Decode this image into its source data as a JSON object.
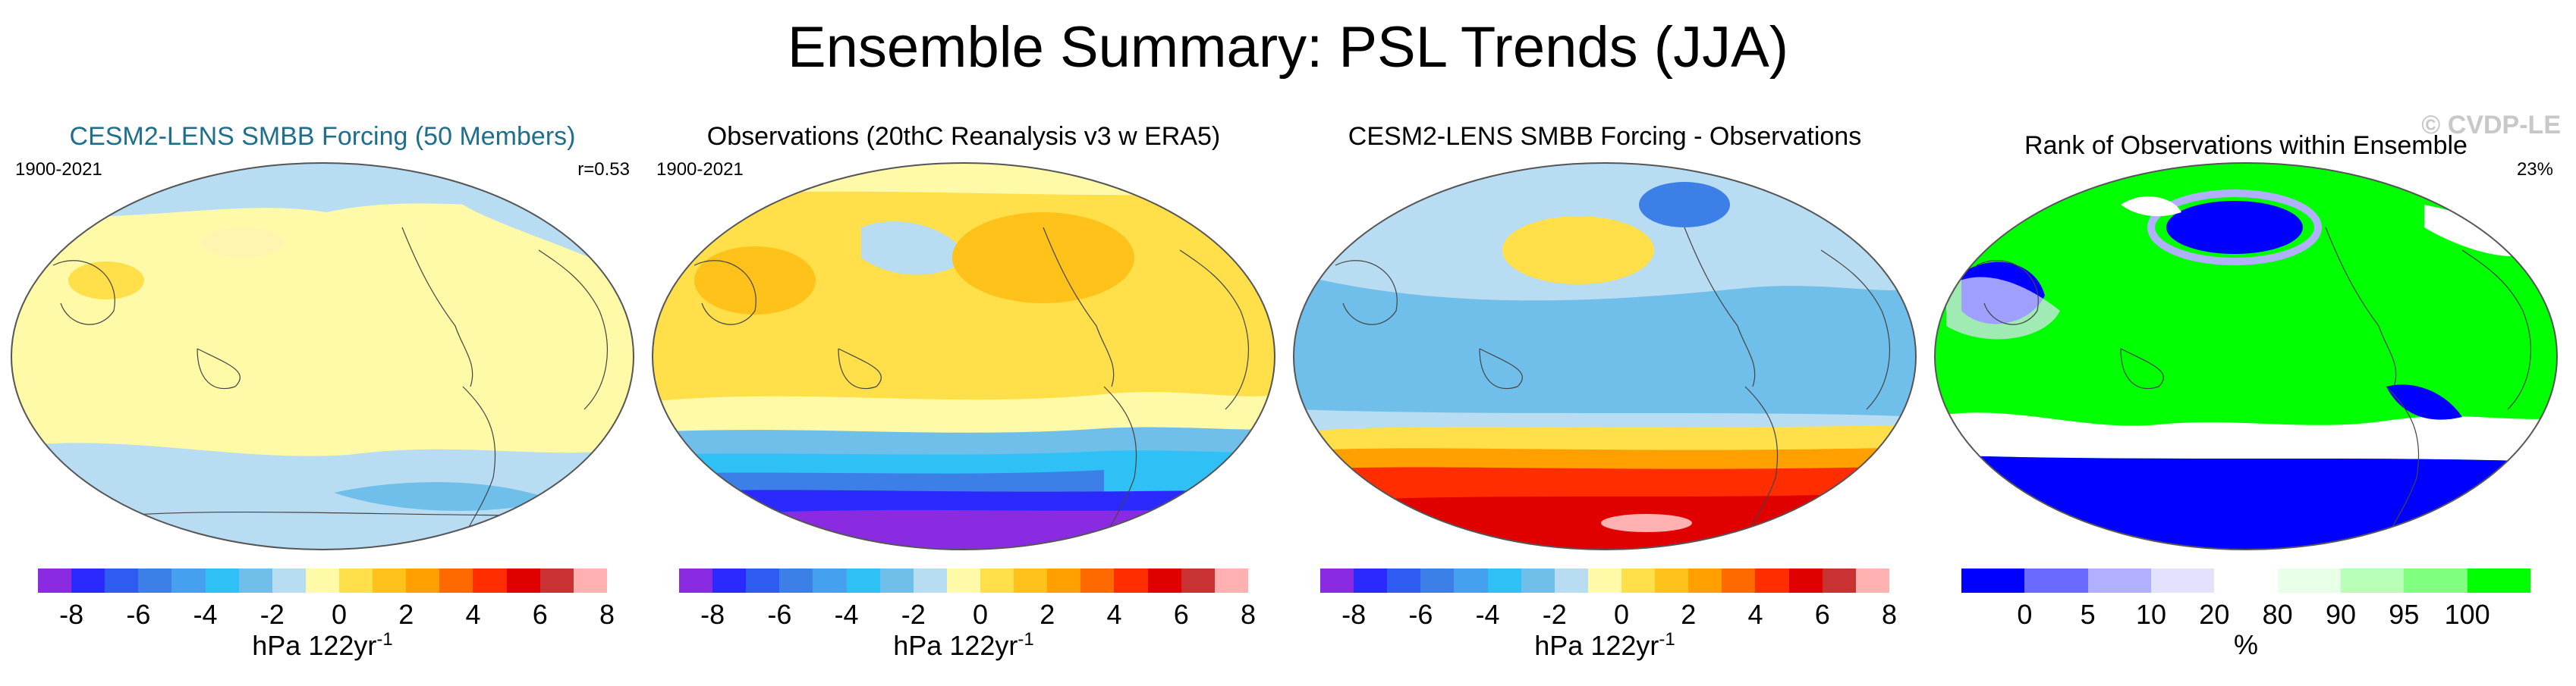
{
  "title": "Ensemble Summary: PSL Trends (JJA)",
  "watermark": "© CVDP-LE",
  "panels": [
    {
      "title": "CESM2-LENS SMBB Forcing (50 Members)",
      "left_label": "1900-2021",
      "right_label": "r=0.53"
    },
    {
      "title": "Observations (20thC Reanalysis v3 w ERA5)",
      "left_label": "1900-2021",
      "right_label": ""
    },
    {
      "title": "CESM2-LENS SMBB Forcing - Observations",
      "left_label": "",
      "right_label": ""
    },
    {
      "title": "Rank of Observations within Ensemble",
      "left_label": "",
      "right_label": "23%"
    }
  ],
  "colorbar_trend": {
    "colors": [
      "#8a2be2",
      "#2a2aff",
      "#2e5bf0",
      "#3c7fe6",
      "#45a0f0",
      "#2fc0f5",
      "#6fbfea",
      "#b8dcf2",
      "#fffaa8",
      "#ffe04a",
      "#ffc21a",
      "#ff9f00",
      "#ff6a00",
      "#ff2d00",
      "#e00000",
      "#c83232",
      "#ffb0b0"
    ],
    "tick_labels": [
      "-8",
      "-6",
      "-4",
      "-2",
      "0",
      "2",
      "4",
      "6",
      "8"
    ],
    "unit_main": "hPa 122yr",
    "unit_sup": "-1"
  },
  "colorbar_rank": {
    "colors": [
      "#0000ff",
      "#6a6aff",
      "#b0b0ff",
      "#e2e2ff",
      "#ffffff",
      "#e8ffe8",
      "#b8ffb8",
      "#80ff80",
      "#00ff00"
    ],
    "tick_labels": [
      "0",
      "5",
      "10",
      "20",
      "80",
      "90",
      "95",
      "100"
    ],
    "unit": "%"
  },
  "chart_data": [
    {
      "type": "heatmap",
      "title": "CESM2-LENS SMBB Forcing (50 Members)",
      "period": "1900-2021",
      "pattern_correlation": 0.53,
      "levels": [
        -8,
        -6,
        -4,
        -2,
        0,
        2,
        4,
        6,
        8
      ],
      "units": "hPa 122yr-1"
    },
    {
      "type": "heatmap",
      "title": "Observations (20thC Reanalysis v3 w ERA5)",
      "period": "1900-2021",
      "levels": [
        -8,
        -6,
        -4,
        -2,
        0,
        2,
        4,
        6,
        8
      ],
      "units": "hPa 122yr-1"
    },
    {
      "type": "heatmap",
      "title": "CESM2-LENS SMBB Forcing - Observations",
      "levels": [
        -8,
        -6,
        -4,
        -2,
        0,
        2,
        4,
        6,
        8
      ],
      "units": "hPa 122yr-1"
    },
    {
      "type": "heatmap",
      "title": "Rank of Observations within Ensemble",
      "summary_percent": 23,
      "levels": [
        0,
        5,
        10,
        20,
        80,
        90,
        95,
        100
      ],
      "units": "%"
    }
  ]
}
